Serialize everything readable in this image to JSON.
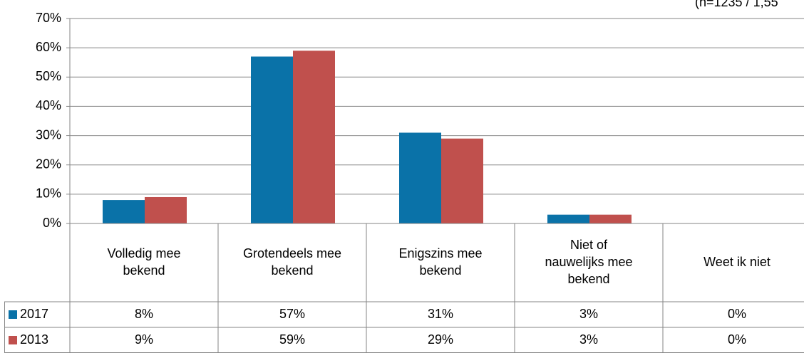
{
  "chart_data": {
    "type": "bar",
    "subtitle": "(n=1235 / 1,55",
    "categories": [
      "Volledig mee bekend",
      "Grotendeels mee bekend",
      "Enigszins mee bekend",
      "Niet of nauwelijks mee bekend",
      "Weet ik niet"
    ],
    "series": [
      {
        "name": "2017",
        "color": "#0a72a8",
        "values": [
          8,
          57,
          31,
          3,
          0
        ],
        "value_labels": [
          "8%",
          "57%",
          "31%",
          "3%",
          "0%"
        ]
      },
      {
        "name": "2013",
        "color": "#c0504d",
        "values": [
          9,
          59,
          29,
          3,
          0
        ],
        "value_labels": [
          "9%",
          "59%",
          "29%",
          "3%",
          "0%"
        ]
      }
    ],
    "ylim": [
      0,
      70
    ],
    "yticks": [
      {
        "value": 0,
        "label": "0%"
      },
      {
        "value": 10,
        "label": "10%"
      },
      {
        "value": 20,
        "label": "20%"
      },
      {
        "value": 30,
        "label": "30%"
      },
      {
        "value": 40,
        "label": "40%"
      },
      {
        "value": 50,
        "label": "50%"
      },
      {
        "value": 60,
        "label": "60%"
      },
      {
        "value": 70,
        "label": "70%"
      }
    ],
    "grid": true
  }
}
